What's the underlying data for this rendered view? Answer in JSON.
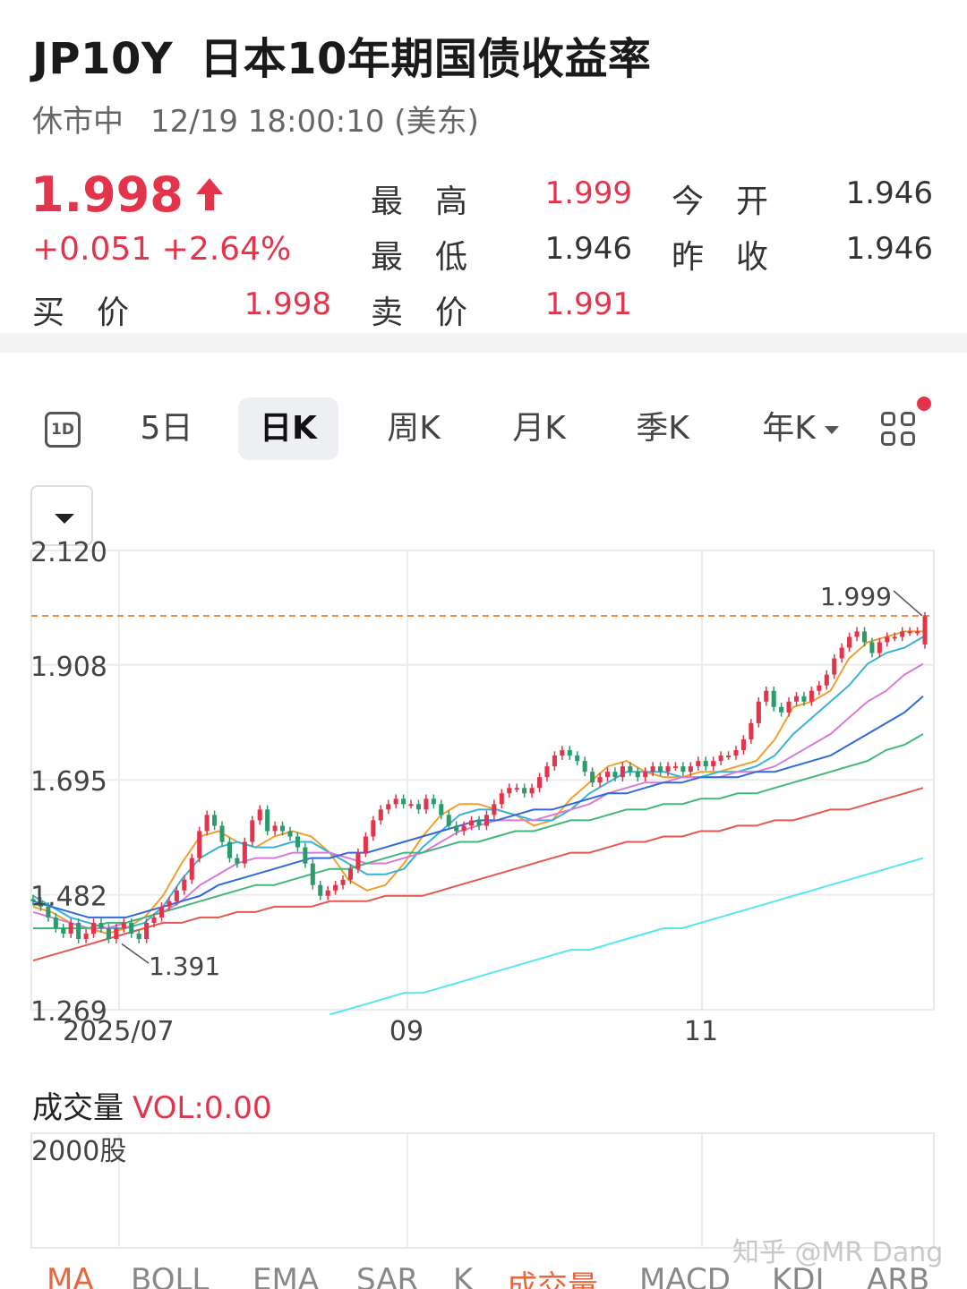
{
  "header": {
    "code": "JP10Y",
    "name": "日本10年期国债收益率",
    "status": "休市中",
    "time": "12/19 18:00:10 (美东)"
  },
  "quote": {
    "price": "1.998",
    "change": "+0.051 +2.64%",
    "high_label": "最高",
    "high": "1.999",
    "open_label": "今开",
    "open": "1.946",
    "low_label": "最低",
    "low": "1.946",
    "prev_close_label": "昨收",
    "prev_close": "1.946",
    "bid_label": "买价",
    "bid": "1.998",
    "ask_label": "卖价",
    "ask": "1.991"
  },
  "periods": {
    "icon_1d": "1D",
    "five_day": "5日",
    "day_k": "日K",
    "week_k": "周K",
    "month_k": "月K",
    "quarter_k": "季K",
    "year_k": "年K"
  },
  "colors": {
    "up": "#e3344b",
    "down": "#2a9c6c",
    "ma5": "#f0a030",
    "ma10": "#36b3d8",
    "ma20": "#d97ad9",
    "ma30": "#2f6ad9",
    "ma60": "#3fb87a",
    "ma120": "#e5584f",
    "ma250": "#54e8ee",
    "reference_line": "#f08a3c"
  },
  "chart_data": {
    "type": "candlestick",
    "y_ticks": [
      "2.120",
      "1.908",
      "1.695",
      "1.482",
      "1.269"
    ],
    "ylim": [
      1.269,
      2.12
    ],
    "x_ticks": [
      "2025/07",
      "09",
      "11"
    ],
    "max_label": "1.999",
    "min_label": "1.391",
    "reference_line": 1.999,
    "grid": true,
    "closes": [
      1.47,
      1.46,
      1.44,
      1.42,
      1.41,
      1.43,
      1.4,
      1.41,
      1.43,
      1.42,
      1.4,
      1.42,
      1.43,
      1.41,
      1.4,
      1.43,
      1.44,
      1.46,
      1.47,
      1.49,
      1.51,
      1.55,
      1.6,
      1.63,
      1.61,
      1.58,
      1.55,
      1.54,
      1.58,
      1.62,
      1.64,
      1.6,
      1.61,
      1.6,
      1.59,
      1.57,
      1.54,
      1.5,
      1.48,
      1.49,
      1.5,
      1.51,
      1.53,
      1.56,
      1.59,
      1.62,
      1.64,
      1.65,
      1.66,
      1.65,
      1.65,
      1.64,
      1.66,
      1.65,
      1.63,
      1.61,
      1.6,
      1.61,
      1.62,
      1.61,
      1.63,
      1.65,
      1.67,
      1.68,
      1.68,
      1.67,
      1.68,
      1.7,
      1.72,
      1.74,
      1.75,
      1.74,
      1.73,
      1.71,
      1.69,
      1.7,
      1.71,
      1.7,
      1.72,
      1.71,
      1.7,
      1.71,
      1.72,
      1.71,
      1.72,
      1.72,
      1.71,
      1.72,
      1.73,
      1.72,
      1.73,
      1.74,
      1.74,
      1.75,
      1.77,
      1.8,
      1.84,
      1.86,
      1.83,
      1.82,
      1.84,
      1.85,
      1.84,
      1.86,
      1.87,
      1.89,
      1.92,
      1.94,
      1.96,
      1.97,
      1.95,
      1.93,
      1.95,
      1.96,
      1.96,
      1.97,
      1.97,
      1.97,
      1.998
    ],
    "ma_series": [
      {
        "name": "MA5",
        "values": [
          1.46,
          1.45,
          1.43,
          1.42,
          1.41,
          1.42,
          1.44,
          1.48,
          1.54,
          1.59,
          1.6,
          1.58,
          1.57,
          1.59,
          1.6,
          1.59,
          1.56,
          1.51,
          1.49,
          1.5,
          1.54,
          1.59,
          1.63,
          1.65,
          1.65,
          1.64,
          1.63,
          1.61,
          1.62,
          1.66,
          1.69,
          1.72,
          1.73,
          1.71,
          1.7,
          1.7,
          1.71,
          1.71,
          1.72,
          1.73,
          1.77,
          1.83,
          1.84,
          1.86,
          1.92,
          1.95,
          1.96,
          1.97,
          1.97
        ]
      },
      {
        "name": "MA10",
        "values": [
          1.48,
          1.46,
          1.44,
          1.43,
          1.42,
          1.42,
          1.43,
          1.46,
          1.51,
          1.55,
          1.57,
          1.58,
          1.57,
          1.57,
          1.58,
          1.58,
          1.56,
          1.54,
          1.52,
          1.52,
          1.53,
          1.57,
          1.6,
          1.63,
          1.64,
          1.64,
          1.63,
          1.62,
          1.62,
          1.64,
          1.67,
          1.69,
          1.71,
          1.71,
          1.71,
          1.7,
          1.7,
          1.71,
          1.71,
          1.72,
          1.74,
          1.78,
          1.81,
          1.84,
          1.87,
          1.91,
          1.93,
          1.94,
          1.96
        ]
      },
      {
        "name": "MA20",
        "values": [
          1.45,
          1.44,
          1.43,
          1.42,
          1.42,
          1.43,
          1.44,
          1.45,
          1.47,
          1.5,
          1.52,
          1.54,
          1.55,
          1.55,
          1.56,
          1.56,
          1.56,
          1.55,
          1.54,
          1.54,
          1.55,
          1.56,
          1.58,
          1.6,
          1.61,
          1.62,
          1.62,
          1.62,
          1.63,
          1.64,
          1.65,
          1.67,
          1.68,
          1.69,
          1.69,
          1.7,
          1.7,
          1.7,
          1.71,
          1.71,
          1.72,
          1.74,
          1.76,
          1.78,
          1.81,
          1.84,
          1.86,
          1.89,
          1.91
        ]
      },
      {
        "name": "MA30",
        "values": [
          1.47,
          1.46,
          1.45,
          1.44,
          1.44,
          1.44,
          1.45,
          1.46,
          1.47,
          1.48,
          1.5,
          1.51,
          1.52,
          1.53,
          1.54,
          1.55,
          1.55,
          1.56,
          1.56,
          1.57,
          1.58,
          1.59,
          1.6,
          1.61,
          1.62,
          1.62,
          1.63,
          1.64,
          1.64,
          1.65,
          1.66,
          1.67,
          1.67,
          1.68,
          1.69,
          1.69,
          1.7,
          1.7,
          1.7,
          1.71,
          1.71,
          1.72,
          1.73,
          1.74,
          1.76,
          1.78,
          1.8,
          1.82,
          1.85
        ]
      },
      {
        "name": "MA60",
        "values": [
          1.42,
          1.42,
          1.42,
          1.42,
          1.43,
          1.43,
          1.44,
          1.45,
          1.46,
          1.47,
          1.48,
          1.49,
          1.5,
          1.5,
          1.51,
          1.52,
          1.53,
          1.53,
          1.54,
          1.55,
          1.56,
          1.56,
          1.57,
          1.58,
          1.58,
          1.59,
          1.6,
          1.6,
          1.61,
          1.62,
          1.62,
          1.63,
          1.64,
          1.64,
          1.65,
          1.65,
          1.66,
          1.66,
          1.67,
          1.67,
          1.68,
          1.69,
          1.7,
          1.71,
          1.72,
          1.73,
          1.75,
          1.76,
          1.78
        ]
      },
      {
        "name": "MA120",
        "values": [
          1.36,
          1.37,
          1.38,
          1.39,
          1.4,
          1.41,
          1.42,
          1.43,
          1.43,
          1.44,
          1.44,
          1.45,
          1.45,
          1.46,
          1.46,
          1.46,
          1.47,
          1.47,
          1.47,
          1.48,
          1.48,
          1.48,
          1.49,
          1.5,
          1.51,
          1.52,
          1.53,
          1.54,
          1.55,
          1.56,
          1.56,
          1.57,
          1.58,
          1.58,
          1.59,
          1.59,
          1.6,
          1.6,
          1.61,
          1.61,
          1.62,
          1.62,
          1.63,
          1.64,
          1.64,
          1.65,
          1.66,
          1.67,
          1.68
        ]
      },
      {
        "name": "MA250",
        "values": [
          null,
          null,
          null,
          null,
          null,
          null,
          null,
          null,
          null,
          null,
          null,
          null,
          null,
          null,
          null,
          null,
          1.26,
          1.27,
          1.28,
          1.29,
          1.3,
          1.3,
          1.31,
          1.32,
          1.33,
          1.34,
          1.35,
          1.36,
          1.37,
          1.38,
          1.38,
          1.39,
          1.4,
          1.41,
          1.42,
          1.42,
          1.43,
          1.44,
          1.45,
          1.46,
          1.47,
          1.48,
          1.49,
          1.5,
          1.51,
          1.52,
          1.53,
          1.54,
          1.55
        ]
      }
    ]
  },
  "volume": {
    "title": "成交量",
    "value": "VOL:0.00",
    "axis_label": "2000股"
  },
  "indicator_tabs": [
    "MA",
    "BOLL",
    "EMA",
    "SAR",
    "K",
    "成交量",
    "MACD",
    "KDJ",
    "ARB"
  ],
  "active_indicator": "成交量",
  "watermark": "知乎 @MR Dang"
}
